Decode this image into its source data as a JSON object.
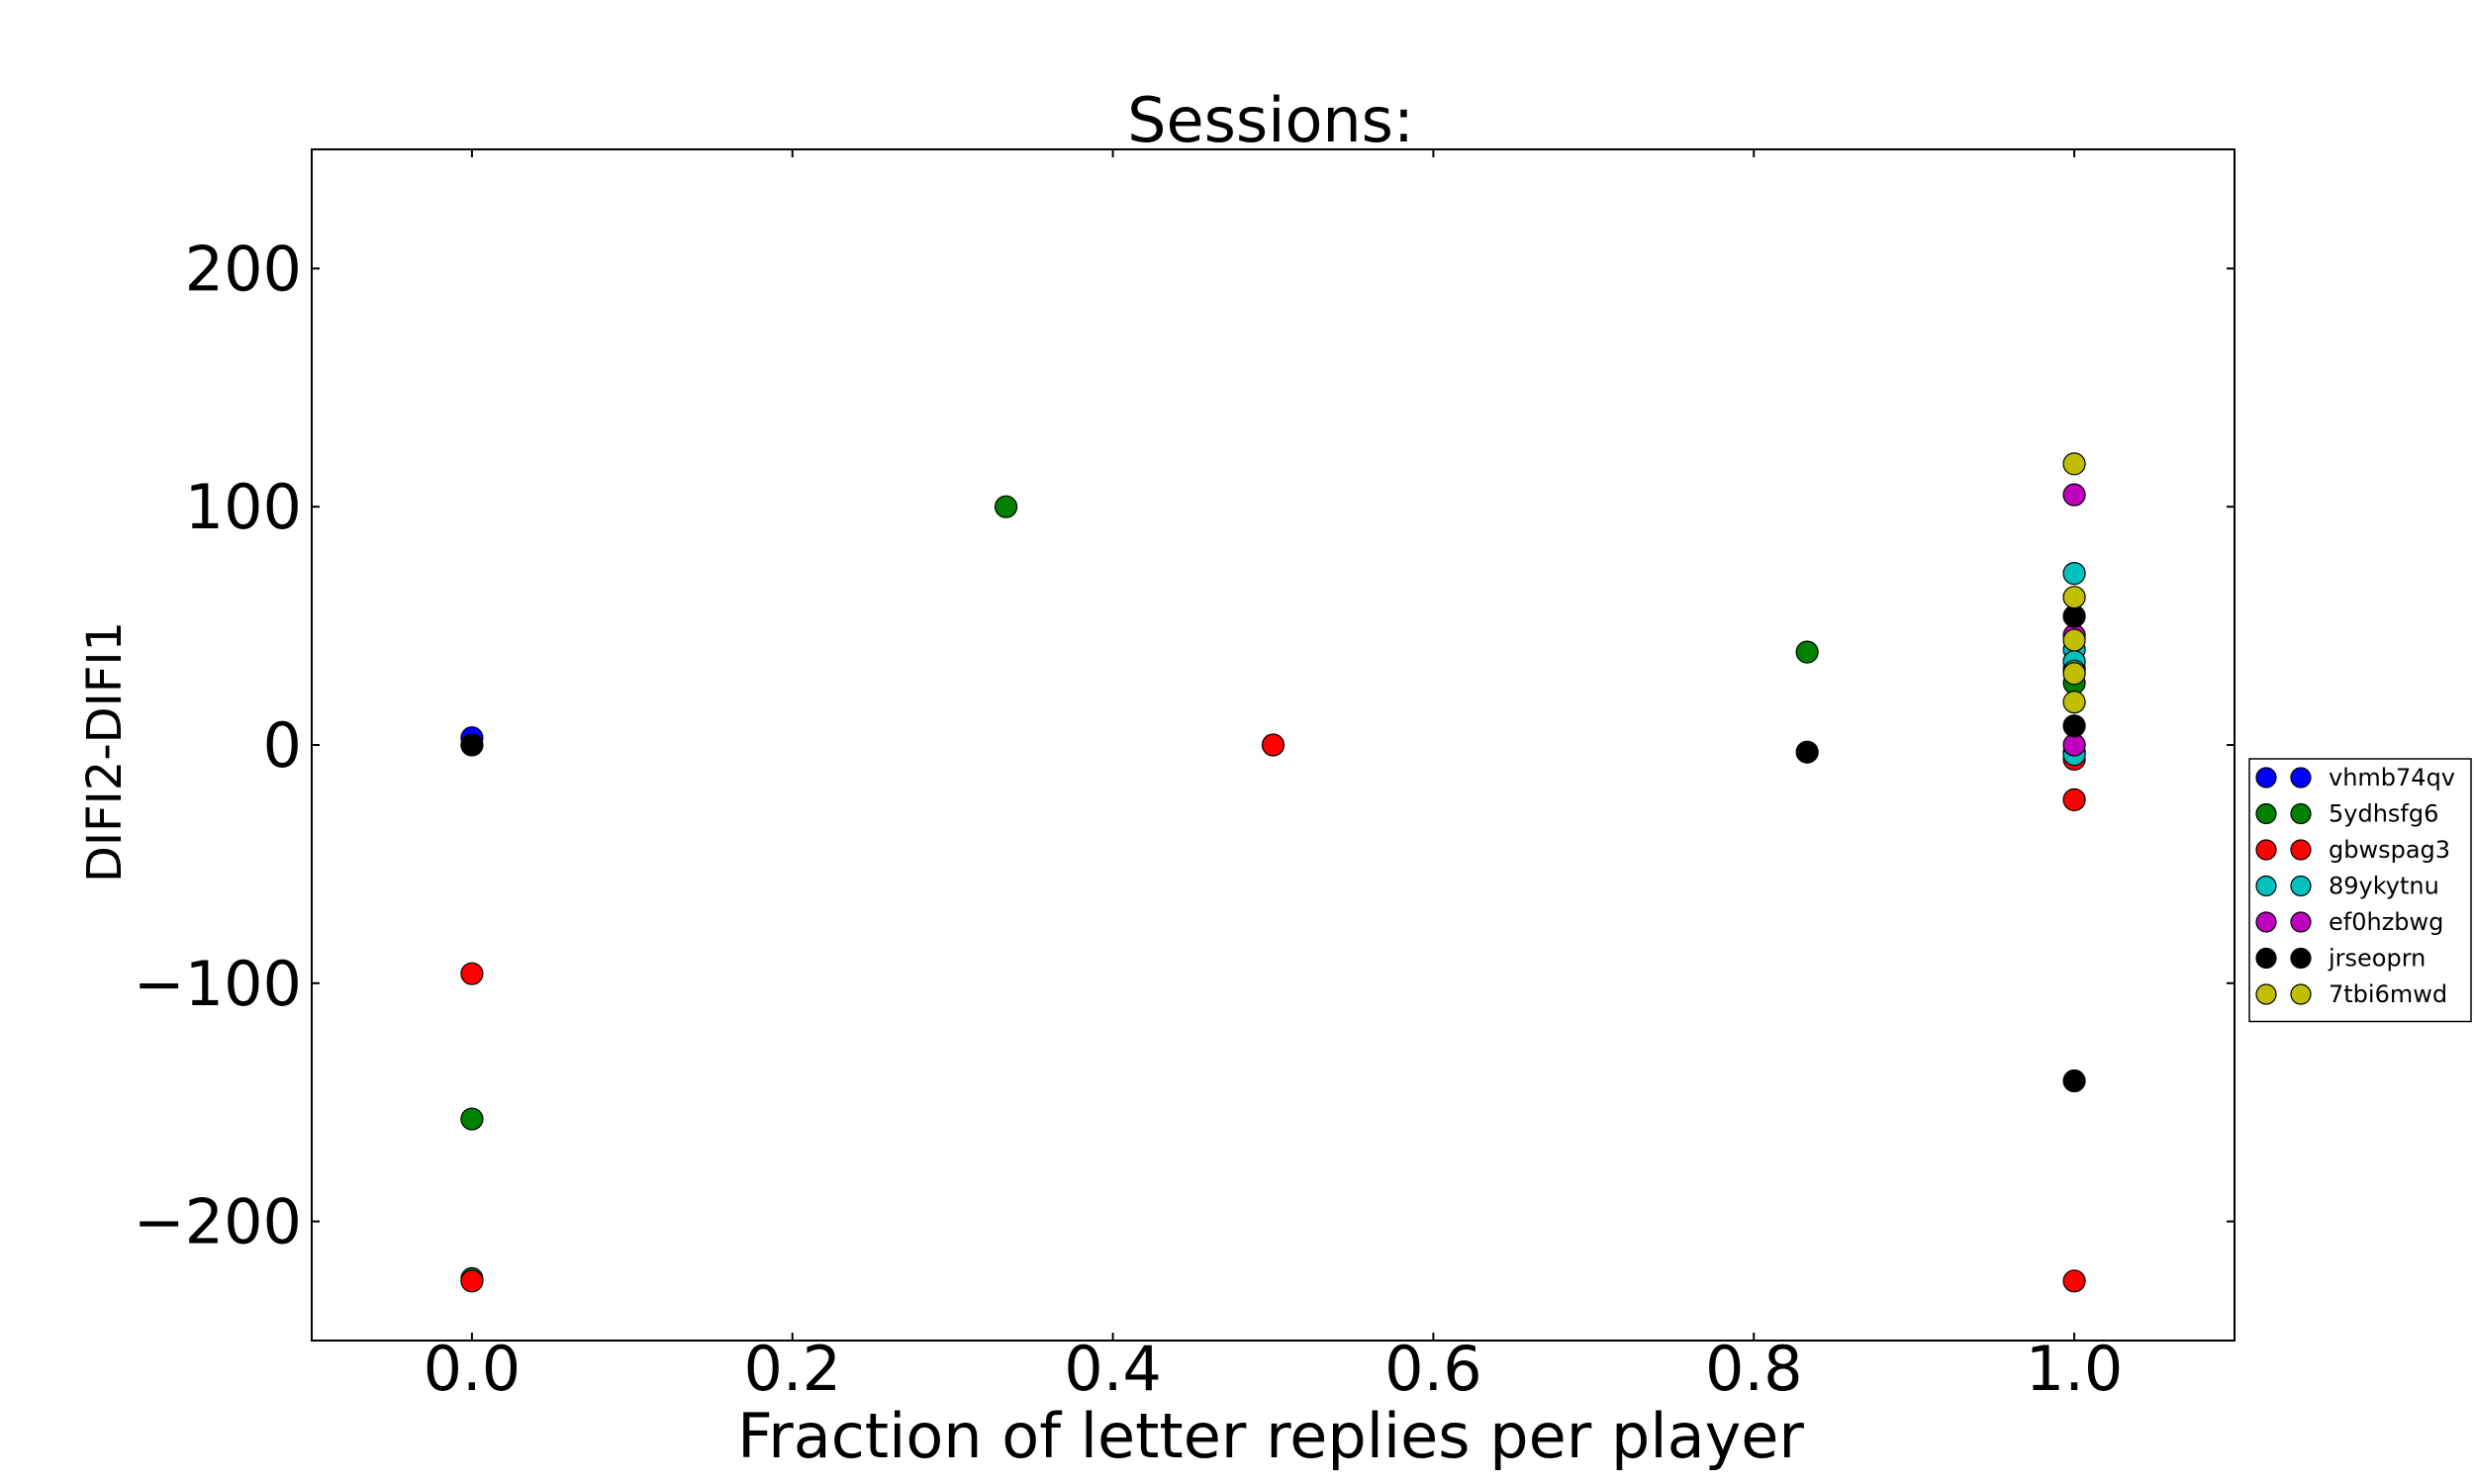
{
  "chart_data": {
    "type": "scatter",
    "title": "Sessions:",
    "xlabel": "Fraction of letter replies per player",
    "ylabel": "DIFI2-DIFI1",
    "xlim": [
      -0.1,
      1.1
    ],
    "ylim": [
      -250,
      250
    ],
    "xticks": [
      0.0,
      0.2,
      0.4,
      0.6,
      0.8,
      1.0
    ],
    "xtick_labels": [
      "0.0",
      "0.2",
      "0.4",
      "0.6",
      "0.8",
      "1.0"
    ],
    "yticks": [
      -200,
      -100,
      0,
      100,
      200
    ],
    "ytick_labels": [
      "−200",
      "−100",
      "0",
      "100",
      "200"
    ],
    "grid": false,
    "legend_position": "right",
    "series": [
      {
        "name": "vhmb74qv",
        "color": "#0000ff",
        "x": [
          0.0,
          1.0,
          1.0
        ],
        "y": [
          3,
          32,
          -3
        ]
      },
      {
        "name": "5ydhsfg6",
        "color": "#008000",
        "x": [
          0.0,
          0.0,
          0.3333,
          0.8333,
          1.0
        ],
        "y": [
          -157,
          -224,
          100,
          39,
          26
        ]
      },
      {
        "name": "gbwspag3",
        "color": "#ff0000",
        "x": [
          0.0,
          0.0,
          0.5,
          1.0,
          1.0,
          1.0
        ],
        "y": [
          -96,
          -225,
          0,
          -6,
          -23,
          -225
        ]
      },
      {
        "name": "89ykytnu",
        "color": "#00bfbf",
        "x": [
          1.0,
          1.0,
          1.0,
          1.0,
          1.0
        ],
        "y": [
          72,
          40,
          35,
          31,
          -4
        ]
      },
      {
        "name": "ef0hzbwg",
        "color": "#bf00bf",
        "x": [
          1.0,
          1.0,
          1.0
        ],
        "y": [
          105,
          46,
          0
        ]
      },
      {
        "name": "jrseoprn",
        "color": "#000000",
        "x": [
          0.0,
          0.8333,
          1.0,
          1.0,
          1.0
        ],
        "y": [
          0,
          -3,
          54,
          8,
          -141
        ]
      },
      {
        "name": "7tbi6mwd",
        "color": "#bfbf00",
        "x": [
          1.0,
          1.0,
          1.0,
          1.0,
          1.0
        ],
        "y": [
          118,
          62,
          44,
          30,
          18
        ]
      }
    ]
  }
}
